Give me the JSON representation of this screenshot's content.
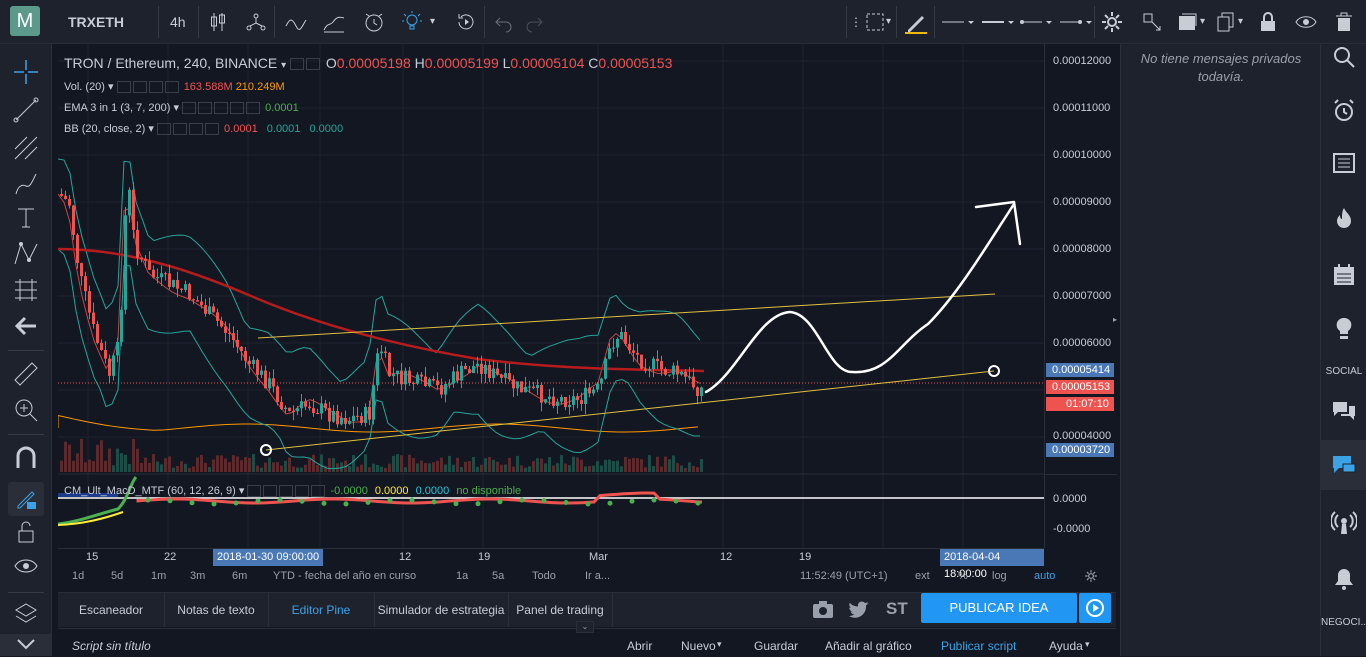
{
  "topbar": {
    "symbol": "TRXETH",
    "interval": "4h"
  },
  "legend": {
    "title": "TRON / Ethereum, 240, BINANCE",
    "o_label": "O",
    "o_value": "0.00005198",
    "h_label": "H",
    "h_value": "0.00005199",
    "l_label": "L",
    "l_value": "0.00005104",
    "c_label": "C",
    "c_value": "0.00005153",
    "vol_label": "Vol. (20)",
    "vol_value1": "163.588M",
    "vol_value2": "210.249M",
    "ema_label": "EMA 3 in 1 (3, 7, 200)",
    "ema_value": "0.0001",
    "bb_label": "BB (20, close, 2)",
    "bb_value1": "0.0001",
    "bb_value2": "0.0001",
    "bb_value3": "0.0000",
    "macd_label": "CM_Ult_MacD_MTF (60, 12, 26, 9)",
    "macd_value1": "-0.0000",
    "macd_value2": "0.0000",
    "macd_value3": "0.0000",
    "macd_value4": "no disponible"
  },
  "price_axis": {
    "labels": [
      "0.00012000",
      "0.00011000",
      "0.00010000",
      "0.00009000",
      "0.00008000",
      "0.00007000",
      "0.00006000",
      "0.00004000"
    ],
    "tag_upper": "0.00005414",
    "tag_current": "0.00005153",
    "tag_countdown": "01:07:10",
    "tag_lower": "0.00003720",
    "macd_labels": [
      "0.0000",
      "-0.0000"
    ]
  },
  "time_axis": {
    "labels": [
      "15",
      "22",
      "12",
      "19",
      "Mar",
      "12",
      "19"
    ],
    "tag_left": "2018-01-30 09:00:00",
    "tag_right": "2018-04-04 18:00:00"
  },
  "bottom": {
    "ranges": [
      "1d",
      "5d",
      "1m",
      "3m",
      "6m",
      "YTD - fecha del año en curso",
      "1a",
      "5a",
      "Todo",
      "Ir a..."
    ],
    "clock": "11:52:49 (UTC+1)",
    "ext": "ext",
    "pct": "%",
    "log": "log",
    "auto": "auto"
  },
  "tabs": [
    "Escaneador",
    "Notas de texto",
    "Editor Pine",
    "Simulador de estrategia",
    "Panel de trading"
  ],
  "tab_icons": [
    "camera-icon",
    "twitter-icon"
  ],
  "tab_st": "ST",
  "publish_button": "PUBLICAR IDEA",
  "pine": {
    "script_title": "Script sin título",
    "menu": [
      "Abrir",
      "Nuevo",
      "Guardar",
      "Añadir al gráfico",
      "Publicar script",
      "Ayuda"
    ]
  },
  "messages": {
    "empty": "No tiene mensajes privados todavía."
  },
  "rightbar": {
    "social": "SOCIAL",
    "negoci": "NEGOCI..."
  },
  "colors": {
    "background": "#131722",
    "panel": "#1e222d",
    "accent": "#2196f3",
    "up": "#26a69a",
    "down": "#ef5350",
    "ema200": "#b71c1c",
    "trendline": "#e0c040"
  }
}
